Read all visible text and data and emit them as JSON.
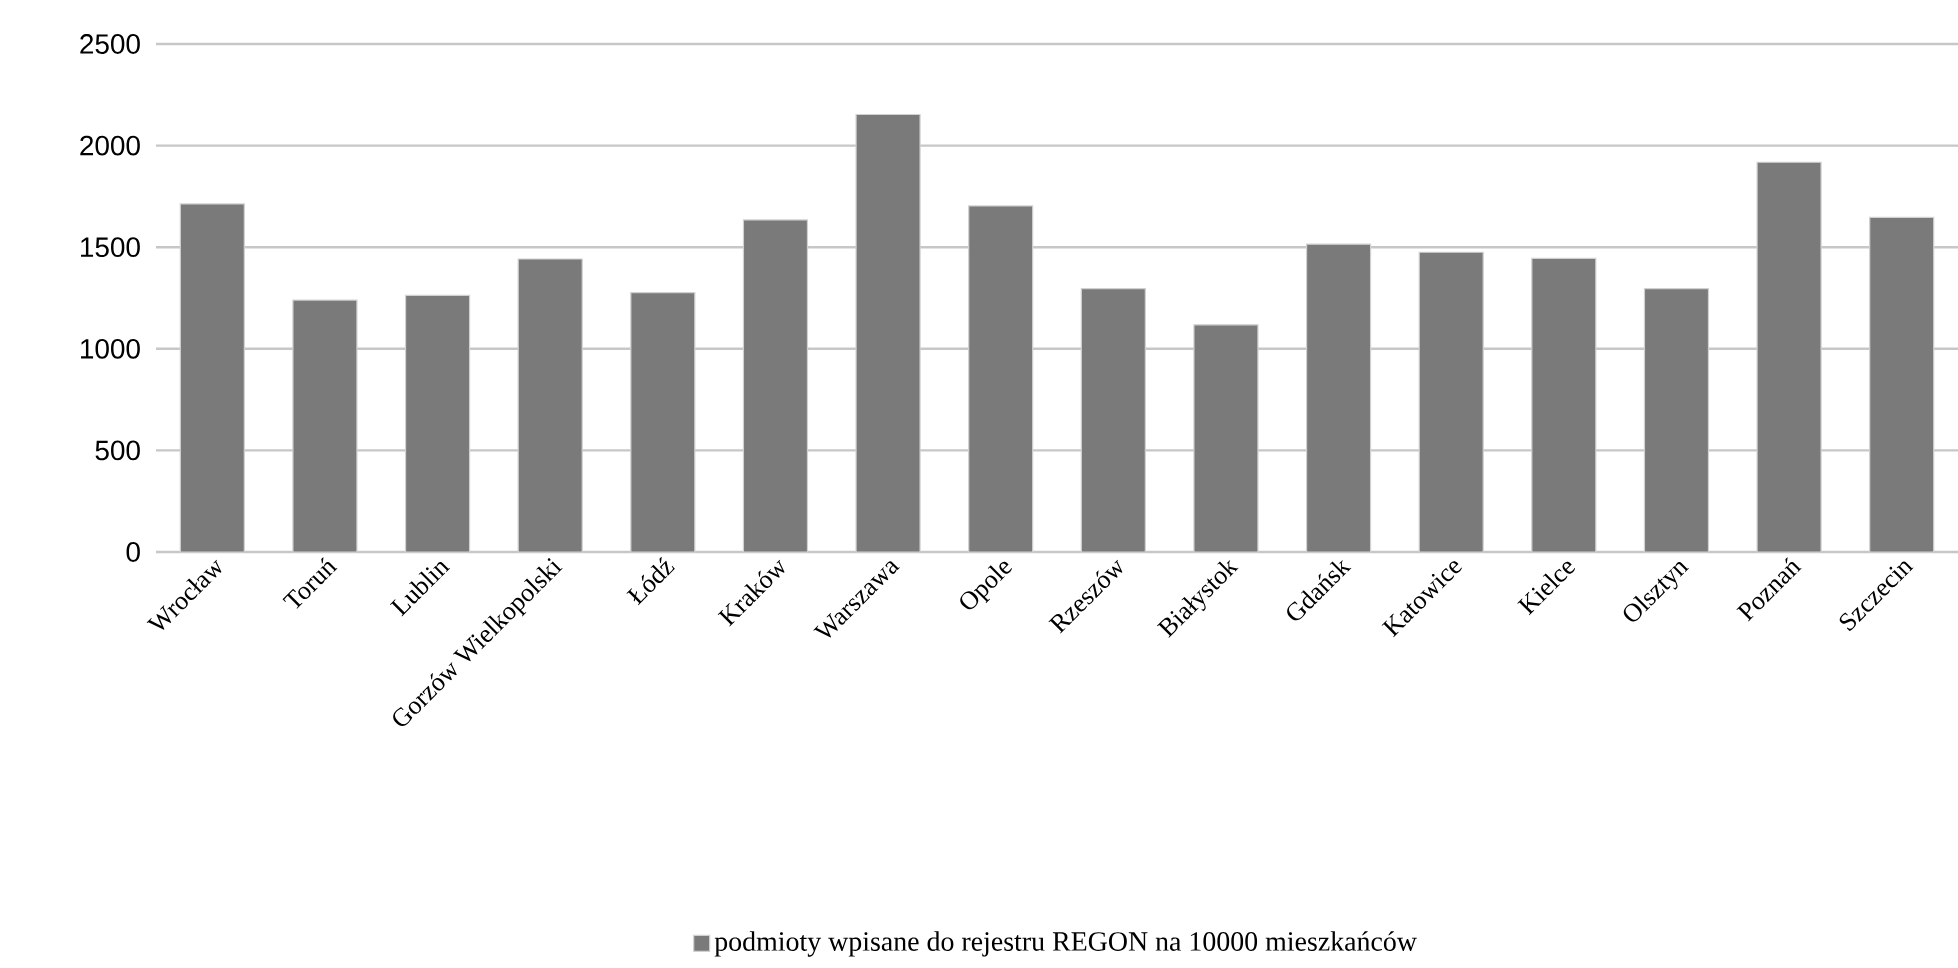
{
  "chart_data": {
    "type": "bar",
    "categories": [
      "Wrocław",
      "Toruń",
      "Lublin",
      "Gorzów Wielkopolski",
      "Łódź",
      "Kraków",
      "Warszawa",
      "Opole",
      "Rzeszów",
      "Białystok",
      "Gdańsk",
      "Katowice",
      "Kielce",
      "Olsztyn",
      "Poznań",
      "Szczecin"
    ],
    "series": [
      {
        "name": "podmioty wpisane do rejestru REGON na 10000 mieszkańców",
        "color": "#7a7a7a",
        "values": [
          1713,
          1240,
          1263,
          1442,
          1276,
          1634,
          2153,
          1703,
          1296,
          1118,
          1515,
          1475,
          1445,
          1296,
          1918,
          1647
        ]
      }
    ],
    "ylim": [
      0,
      2500
    ],
    "yticks": [
      0,
      500,
      1000,
      1500,
      2000,
      2500
    ],
    "grid": "y",
    "legend": "bottom"
  }
}
